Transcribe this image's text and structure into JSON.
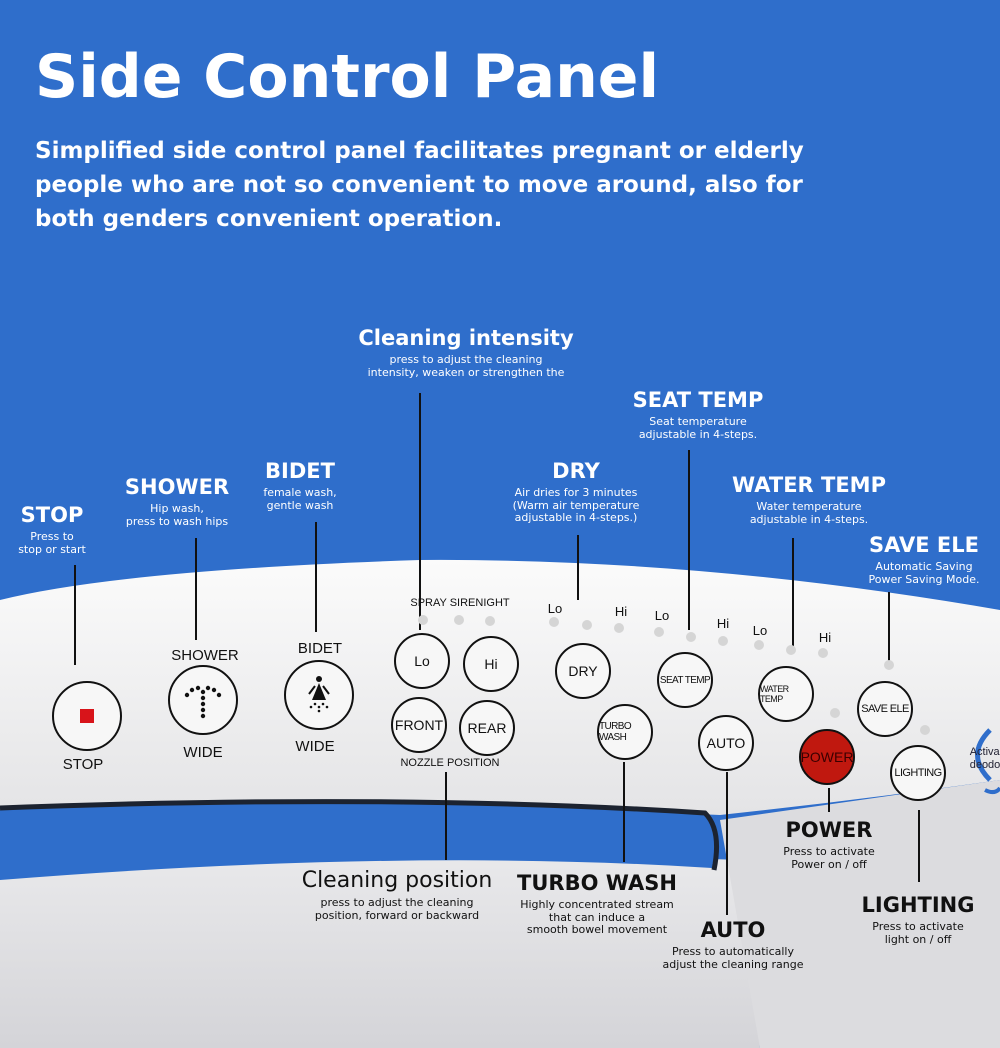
{
  "header": {
    "title": "Side Control Panel",
    "description_lines": [
      "Simplified side control panel facilitates pregnant or elderly",
      "people who are not so convenient to move around, also for",
      "both genders convenient operation."
    ]
  },
  "callouts": {
    "cleaning_intensity": {
      "title": "Cleaning intensity",
      "lines": [
        "press to adjust the cleaning",
        "intensity, weaken or strengthen the"
      ]
    },
    "seat_temp": {
      "title": "SEAT TEMP",
      "lines": [
        "Seat temperature",
        "adjustable in 4-steps."
      ]
    },
    "dry": {
      "title": "DRY",
      "lines": [
        "Air dries for 3 minutes",
        "(Warm air temperature",
        "adjustable in 4-steps.)"
      ]
    },
    "water_temp": {
      "title": "WATER TEMP",
      "lines": [
        "Water temperature",
        "adjustable in 4-steps."
      ]
    },
    "save_ele": {
      "title": "SAVE ELE",
      "lines": [
        "Automatic Saving",
        "Power Saving Mode."
      ]
    },
    "bidet": {
      "title": "BIDET",
      "lines": [
        "female wash,",
        "gentle wash"
      ]
    },
    "shower": {
      "title": "SHOWER",
      "lines": [
        "Hip wash,",
        "press to wash hips"
      ]
    },
    "stop": {
      "title": "STOP",
      "lines": [
        "Press to",
        "stop or start"
      ]
    },
    "cleaning_position": {
      "title": "Cleaning position",
      "lines": [
        "press to adjust the cleaning",
        "position, forward or backward"
      ]
    },
    "turbo_wash": {
      "title": "TURBO WASH",
      "lines": [
        "Highly concentrated stream",
        "that can induce a",
        "smooth bowel movement"
      ]
    },
    "auto": {
      "title": "AUTO",
      "lines": [
        "Press to automatically",
        "adjust the cleaning range"
      ]
    },
    "power": {
      "title": "POWER",
      "lines": [
        "Press to activate",
        "Power on / off"
      ]
    },
    "lighting": {
      "title": "LIGHTING",
      "lines": [
        "Press to activate",
        "light on / off"
      ]
    }
  },
  "panel": {
    "stop_label": "STOP",
    "shower_label": "SHOWER",
    "shower_sub": "WIDE",
    "bidet_label": "BIDET",
    "bidet_sub": "WIDE",
    "spray_label": "SPRAY SIRENIGHT",
    "nozzle_label": "NOZZLE POSITION",
    "buttons": {
      "lo": "Lo",
      "hi": "Hi",
      "front": "FRONT",
      "rear": "REAR",
      "dry": "DRY",
      "turbo_wash": "TURBO WASH",
      "seat_temp": "SEAT TEMP",
      "auto": "AUTO",
      "water_temp": "WATER TEMP",
      "power": "POWER",
      "save_ele": "SAVE ELE",
      "lighting": "LIGHTING"
    },
    "level_labels": [
      "Lo",
      "Hi",
      "Lo",
      "Hi",
      "Lo",
      "Hi"
    ],
    "edge_text": [
      "Activa",
      "deodo"
    ]
  },
  "colors": {
    "background": "#2f6ecb",
    "stop_square": "#d8141a",
    "power_button": "#c0180f"
  }
}
